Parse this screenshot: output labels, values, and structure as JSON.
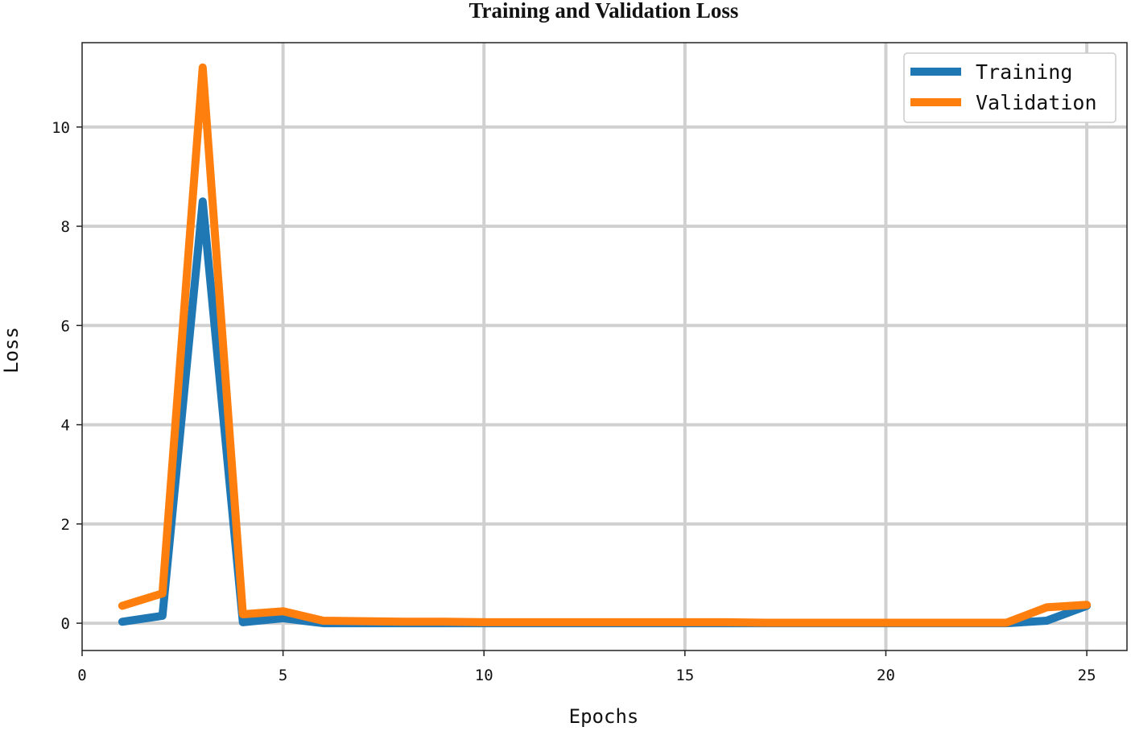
{
  "chart_data": {
    "type": "line",
    "title": "Training and Validation Loss",
    "xlabel": "Epochs",
    "ylabel": "Loss",
    "xlim": [
      0,
      26
    ],
    "ylim": [
      -0.55,
      11.7
    ],
    "xticks": [
      0,
      5,
      10,
      15,
      20,
      25
    ],
    "yticks": [
      0,
      2,
      4,
      6,
      8,
      10
    ],
    "grid": true,
    "legend_position": "top-right",
    "x": [
      1,
      2,
      3,
      4,
      5,
      6,
      7,
      8,
      9,
      10,
      11,
      12,
      13,
      14,
      15,
      16,
      17,
      18,
      19,
      20,
      21,
      22,
      23,
      24,
      25
    ],
    "series": [
      {
        "name": "Training",
        "color": "#1f77b4",
        "values": [
          0.03,
          0.15,
          8.5,
          0.02,
          0.1,
          0.0,
          0.0,
          0.0,
          0.0,
          0.0,
          0.0,
          0.0,
          0.0,
          0.0,
          0.0,
          0.0,
          0.0,
          0.0,
          0.0,
          0.0,
          0.0,
          0.0,
          0.0,
          0.05,
          0.35
        ]
      },
      {
        "name": "Validation",
        "color": "#ff7f0e",
        "values": [
          0.35,
          0.6,
          11.2,
          0.18,
          0.24,
          0.05,
          0.04,
          0.03,
          0.03,
          0.02,
          0.02,
          0.02,
          0.02,
          0.02,
          0.02,
          0.02,
          0.01,
          0.01,
          0.01,
          0.01,
          0.01,
          0.01,
          0.01,
          0.32,
          0.37
        ]
      }
    ]
  }
}
